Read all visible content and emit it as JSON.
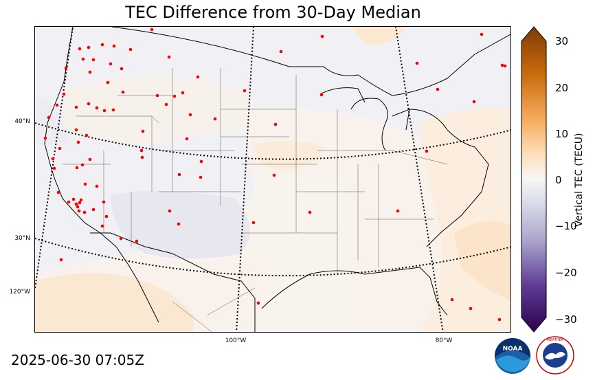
{
  "title": "TEC Difference from 30-Day Median",
  "timestamp": "2025-06-30 07:05Z",
  "lat_labels": [
    "40°N",
    "30°N",
    "120°W"
  ],
  "lon_labels": [
    "100°W",
    "80°W"
  ],
  "colorbar": {
    "label": "Vertical TEC (TECU)",
    "ticks": [
      "30",
      "20",
      "10",
      "0",
      "−10",
      "−20",
      "−30"
    ],
    "range": [
      -30,
      30
    ],
    "colors_high": [
      "#7f3b08",
      "#b35806",
      "#e08214",
      "#fdb863",
      "#fee0b6"
    ],
    "color_zero": "#f7f7f7",
    "colors_low": [
      "#d8daeb",
      "#b2abd2",
      "#8073ac",
      "#542788",
      "#2d004b"
    ]
  },
  "logos": {
    "noaa": "NOAA",
    "nws": "NATIONAL WEATHER SERVICE"
  }
}
